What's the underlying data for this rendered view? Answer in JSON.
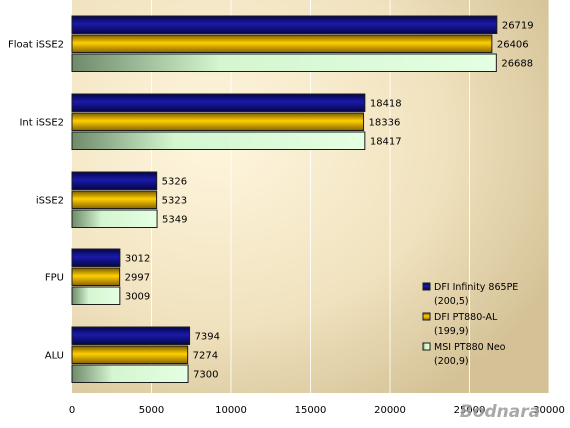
{
  "chart_data": {
    "type": "bar",
    "orientation": "horizontal",
    "categories": [
      "Float iSSE2",
      "Int iSSE2",
      "iSSE2",
      "FPU",
      "ALU"
    ],
    "series": [
      {
        "name": "DFI Infinity 865PE",
        "name_sub": "(200,5)",
        "values": [
          26719,
          18418,
          5326,
          3012,
          7394
        ]
      },
      {
        "name": "DFI PT880-AL",
        "name_sub": "(199,9)",
        "values": [
          26406,
          18336,
          5323,
          2997,
          7274
        ]
      },
      {
        "name": "MSI PT880 Neo",
        "name_sub": "(200,9)",
        "values": [
          26688,
          18417,
          5349,
          3009,
          7300
        ]
      }
    ],
    "xlim": [
      0,
      30000
    ],
    "x_ticks": [
      0,
      5000,
      10000,
      15000,
      20000,
      25000,
      30000
    ],
    "grid": true,
    "legend_placement": "right",
    "data_labels": true
  },
  "watermark": "Bodnara",
  "colors": {
    "series_1": "#0a0a80",
    "series_2": "#e8b400",
    "series_3": "#c8f0c8",
    "background_center": "#fff4d8",
    "background_edge": "#d8c8a0"
  }
}
